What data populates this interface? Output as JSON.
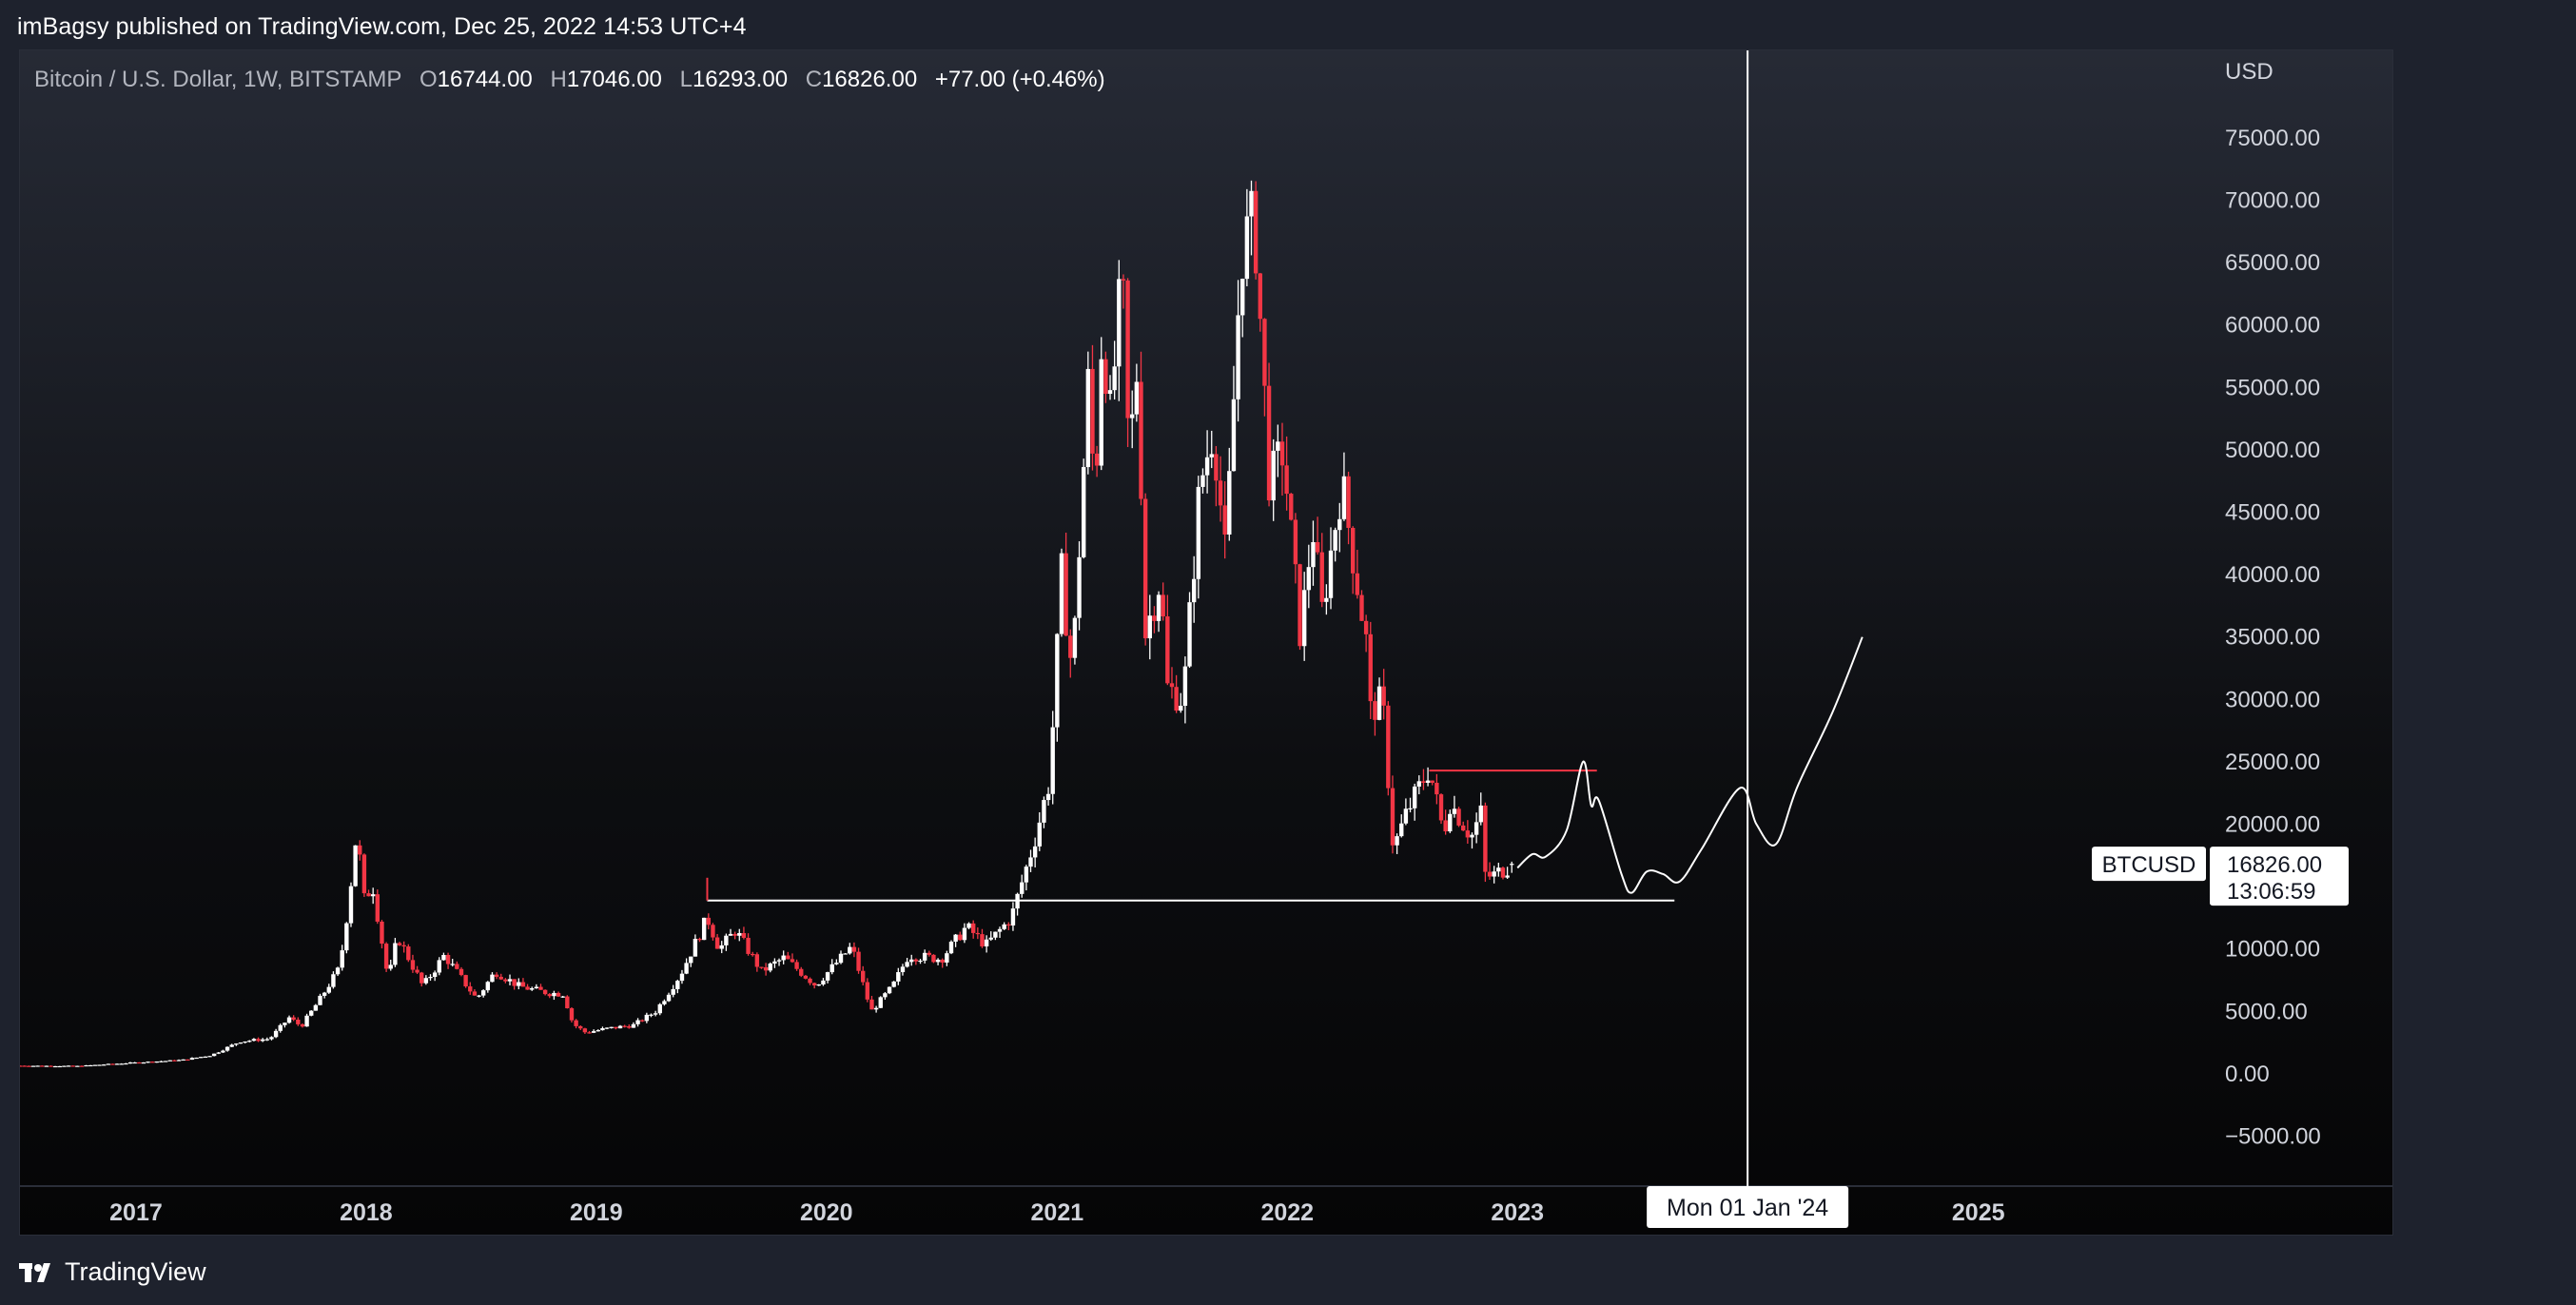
{
  "header": {
    "published_line": "imBagsy published on TradingView.com, Dec 25, 2022 14:53 UTC+4"
  },
  "legend": {
    "symbol": "Bitcoin / U.S. Dollar, 1W, BITSTAMP",
    "o_label": "O",
    "o_value": "16744.00",
    "h_label": "H",
    "h_value": "17046.00",
    "l_label": "L",
    "l_value": "16293.00",
    "c_label": "C",
    "c_value": "16826.00",
    "change": "+77.00 (+0.46%)"
  },
  "price_scale": {
    "currency": "USD"
  },
  "badges": {
    "symbol_tag": "BTCUSD",
    "last_price": "16826.00",
    "countdown": "13:06:59",
    "crosshair_date": "Mon 01 Jan '24"
  },
  "footer": {
    "brand": "TradingView"
  },
  "colors": {
    "up": "#ffffff",
    "down": "#f23645",
    "background": "#1e222d",
    "projection": "#ffffff"
  },
  "chart_data": {
    "type": "candlestick",
    "symbol": "BTCUSD",
    "timeframe": "1W",
    "exchange": "BITSTAMP",
    "y_ticks": [
      75000,
      70000,
      65000,
      60000,
      55000,
      50000,
      45000,
      40000,
      35000,
      30000,
      25000,
      20000,
      15000,
      10000,
      5000,
      0,
      -5000
    ],
    "y_tick_labels": [
      "75000.00",
      "70000.00",
      "65000.00",
      "60000.00",
      "55000.00",
      "50000.00",
      "45000.00",
      "40000.00",
      "35000.00",
      "30000.00",
      "25000.00",
      "20000.00",
      "",
      "10000.00",
      "5000.00",
      "0.00",
      "−5000.00"
    ],
    "ylim": [
      -9000,
      82000
    ],
    "x_ticks": [
      "2017",
      "2018",
      "2019",
      "2020",
      "2021",
      "2022",
      "2023",
      "2024",
      "2025"
    ],
    "x_tick_labels": [
      "2017",
      "2018",
      "2019",
      "2020",
      "2021",
      "2022",
      "2023",
      "",
      "2025"
    ],
    "xlim": [
      "2016-07-01",
      "2025-12-31"
    ],
    "price_path": [
      [
        "2016-07-01",
        650
      ],
      [
        "2016-10-01",
        620
      ],
      [
        "2017-01-01",
        900
      ],
      [
        "2017-03-15",
        1100
      ],
      [
        "2017-05-01",
        1500
      ],
      [
        "2017-06-15",
        2600
      ],
      [
        "2017-08-01",
        2800
      ],
      [
        "2017-09-01",
        4500
      ],
      [
        "2017-09-20",
        3800
      ],
      [
        "2017-10-20",
        6000
      ],
      [
        "2017-11-20",
        8500
      ],
      [
        "2017-12-05",
        14000
      ],
      [
        "2017-12-17",
        19500
      ],
      [
        "2017-12-30",
        13500
      ],
      [
        "2018-01-10",
        15500
      ],
      [
        "2018-02-05",
        7500
      ],
      [
        "2018-02-20",
        11000
      ],
      [
        "2018-04-01",
        7000
      ],
      [
        "2018-05-05",
        9500
      ],
      [
        "2018-06-25",
        6000
      ],
      [
        "2018-07-25",
        8200
      ],
      [
        "2018-09-01",
        7000
      ],
      [
        "2018-10-15",
        6500
      ],
      [
        "2018-11-10",
        6400
      ],
      [
        "2018-11-25",
        4000
      ],
      [
        "2018-12-15",
        3300
      ],
      [
        "2019-01-15",
        3600
      ],
      [
        "2019-03-01",
        3900
      ],
      [
        "2019-04-05",
        5000
      ],
      [
        "2019-05-15",
        8000
      ],
      [
        "2019-06-26",
        12500
      ],
      [
        "2019-07-15",
        10000
      ],
      [
        "2019-08-10",
        11500
      ],
      [
        "2019-09-20",
        8200
      ],
      [
        "2019-10-26",
        9300
      ],
      [
        "2019-12-15",
        7100
      ],
      [
        "2020-02-10",
        10200
      ],
      [
        "2020-03-12",
        5000
      ],
      [
        "2020-04-15",
        7000
      ],
      [
        "2020-05-10",
        9500
      ],
      [
        "2020-07-01",
        9200
      ],
      [
        "2020-08-10",
        11800
      ],
      [
        "2020-09-10",
        10300
      ],
      [
        "2020-10-20",
        12500
      ],
      [
        "2020-11-25",
        18500
      ],
      [
        "2020-12-20",
        23500
      ],
      [
        "2021-01-08",
        40000
      ],
      [
        "2021-01-25",
        32000
      ],
      [
        "2021-02-21",
        57000
      ],
      [
        "2021-03-01",
        45000
      ],
      [
        "2021-03-14",
        61000
      ],
      [
        "2021-03-25",
        52000
      ],
      [
        "2021-04-14",
        64000
      ],
      [
        "2021-04-25",
        49000
      ],
      [
        "2021-05-10",
        58000
      ],
      [
        "2021-05-19",
        35000
      ],
      [
        "2021-06-15",
        40000
      ],
      [
        "2021-06-22",
        31000
      ],
      [
        "2021-07-20",
        30000
      ],
      [
        "2021-08-15",
        47000
      ],
      [
        "2021-09-06",
        52000
      ],
      [
        "2021-09-25",
        41000
      ],
      [
        "2021-10-20",
        66000
      ],
      [
        "2021-11-10",
        68500
      ],
      [
        "2021-12-04",
        47000
      ],
      [
        "2021-12-25",
        50000
      ],
      [
        "2022-01-22",
        35000
      ],
      [
        "2022-02-10",
        44000
      ],
      [
        "2022-02-25",
        37000
      ],
      [
        "2022-03-28",
        47500
      ],
      [
        "2022-05-08",
        34000
      ],
      [
        "2022-05-12",
        29000
      ],
      [
        "2022-06-01",
        30000
      ],
      [
        "2022-06-18",
        18000
      ],
      [
        "2022-07-10",
        21000
      ],
      [
        "2022-08-14",
        24500
      ],
      [
        "2022-09-07",
        19000
      ],
      [
        "2022-09-13",
        22000
      ],
      [
        "2022-10-20",
        19000
      ],
      [
        "2022-11-05",
        21000
      ],
      [
        "2022-11-09",
        16000
      ],
      [
        "2022-11-21",
        15800
      ],
      [
        "2022-12-25",
        16826
      ]
    ],
    "last_candle": {
      "open": 16744.0,
      "high": 17046.0,
      "low": 16293.0,
      "close": 16826.0,
      "change": 77.0,
      "change_pct": 0.46
    },
    "drawings": {
      "support_line": {
        "from": [
          "2019-06-26",
          13880
        ],
        "to": [
          "2023-09-07",
          13880
        ],
        "color": "#ffffff"
      },
      "resistance_line": {
        "from": [
          "2022-08-14",
          24300
        ],
        "to": [
          "2023-05-07",
          24300
        ],
        "color": "#f23645"
      },
      "crosshair_date": "2024-01-01",
      "projection_path": [
        [
          "2023-01-01",
          16500
        ],
        [
          "2023-01-25",
          17600
        ],
        [
          "2023-02-15",
          17400
        ],
        [
          "2023-03-20",
          19500
        ],
        [
          "2023-04-15",
          25000
        ],
        [
          "2023-04-28",
          21500
        ],
        [
          "2023-05-10",
          21900
        ],
        [
          "2023-06-15",
          16000
        ],
        [
          "2023-07-01",
          14500
        ],
        [
          "2023-07-25",
          16200
        ],
        [
          "2023-08-20",
          16000
        ],
        [
          "2023-09-15",
          15400
        ],
        [
          "2023-10-20",
          18000
        ],
        [
          "2023-12-20",
          22900
        ],
        [
          "2024-01-15",
          20000
        ],
        [
          "2024-02-15",
          18400
        ],
        [
          "2024-03-20",
          23000
        ],
        [
          "2024-05-15",
          29000
        ],
        [
          "2024-07-01",
          35000
        ]
      ]
    }
  }
}
